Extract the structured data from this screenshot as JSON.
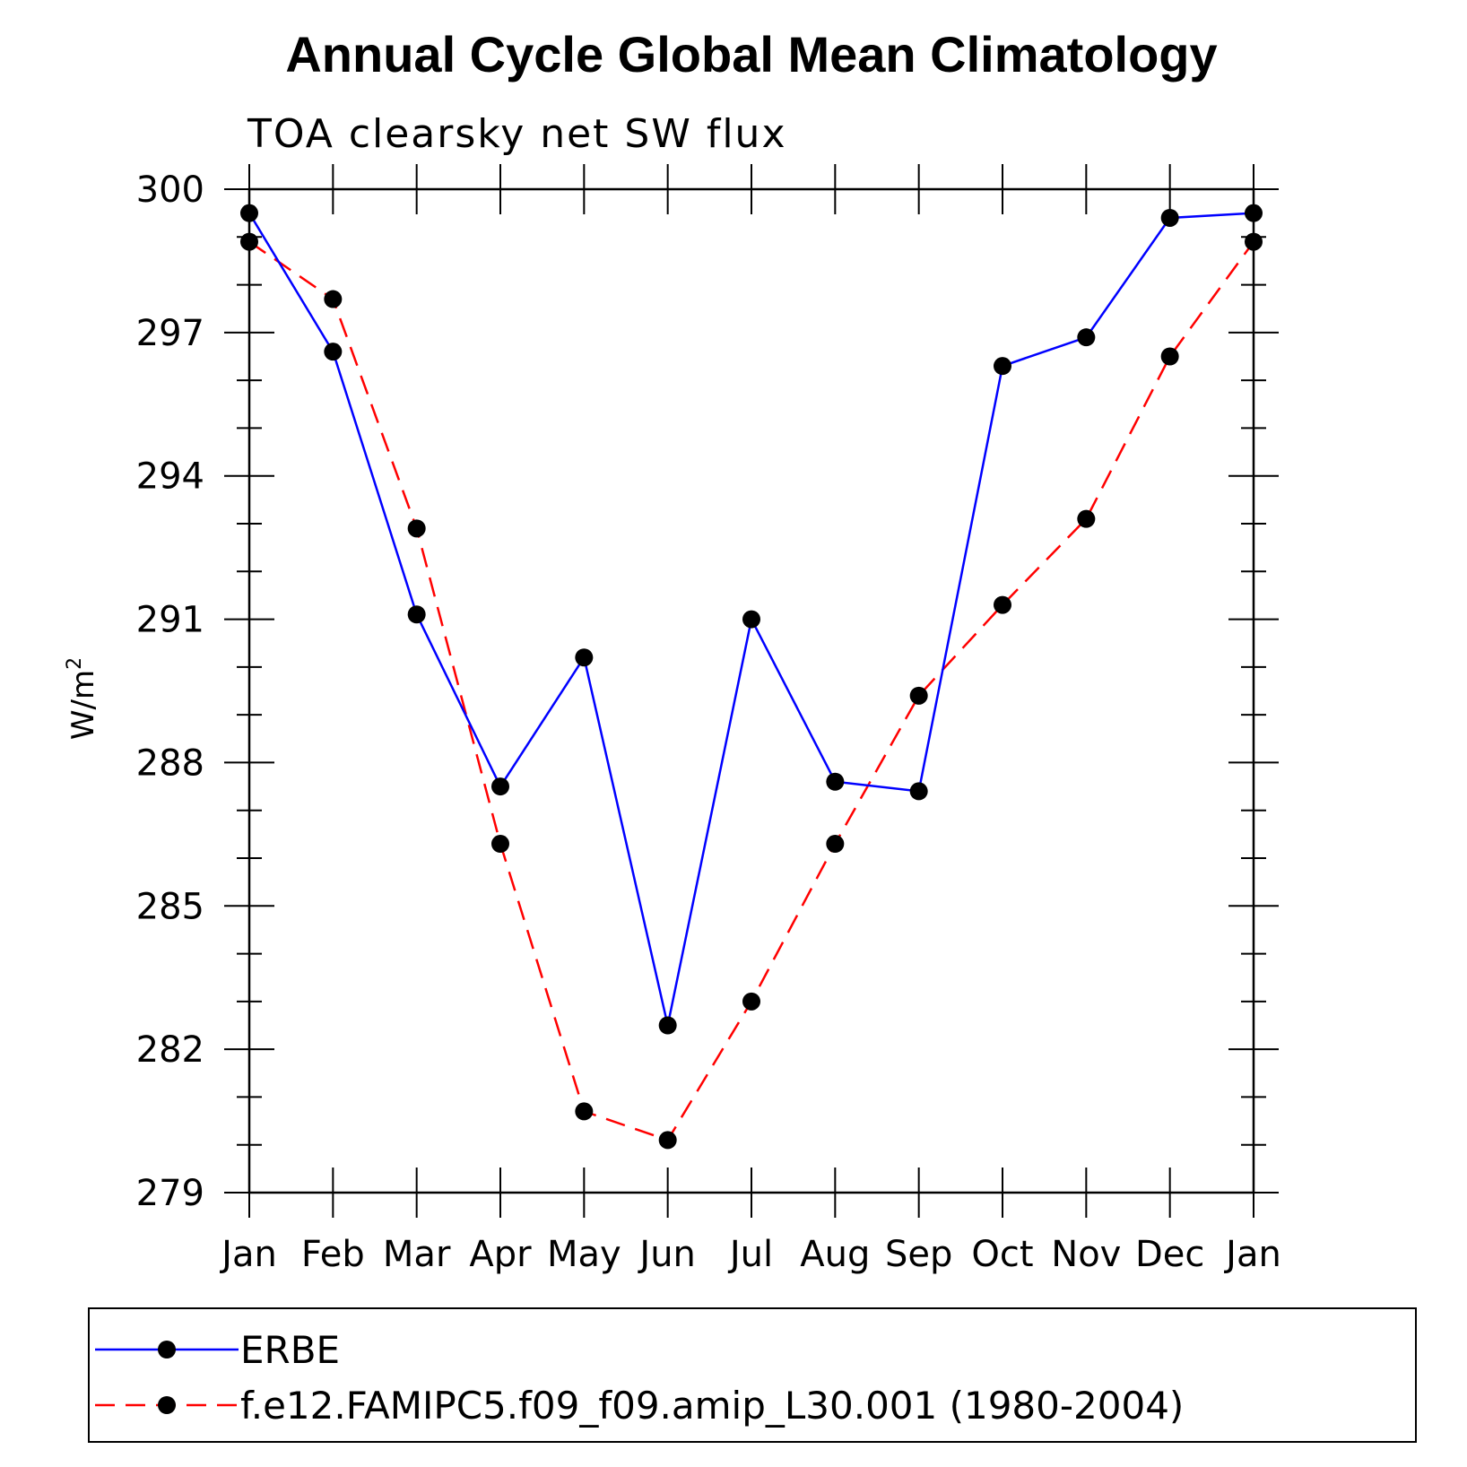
{
  "chart_data": {
    "type": "line",
    "title": "Annual Cycle Global Mean Climatology",
    "subtitle": "TOA clearsky net SW flux",
    "xlabel": "",
    "ylabel": "W/m",
    "ylabel_superscript": "2",
    "categories": [
      "Jan",
      "Feb",
      "Mar",
      "Apr",
      "May",
      "Jun",
      "Jul",
      "Aug",
      "Sep",
      "Oct",
      "Nov",
      "Dec",
      "Jan"
    ],
    "ylim": [
      279,
      300
    ],
    "yticks": [
      279,
      282,
      285,
      288,
      291,
      294,
      297,
      300
    ],
    "yminor_step": 1,
    "legend_position": "bottom",
    "series": [
      {
        "name": "ERBE",
        "color": "#0000ff",
        "dash": "solid",
        "marker": "circle",
        "values": [
          299.5,
          296.6,
          291.1,
          287.5,
          290.2,
          282.5,
          291.0,
          287.6,
          287.4,
          296.3,
          296.9,
          299.4,
          299.5
        ]
      },
      {
        "name": "f.e12.FAMIPC5.f09_f09.amip_L30.001 (1980-2004)",
        "color": "#ff0000",
        "dash": "dashed",
        "marker": "circle",
        "values": [
          298.9,
          297.7,
          292.9,
          286.3,
          280.7,
          280.1,
          283.0,
          286.3,
          289.4,
          291.3,
          293.1,
          296.5,
          298.9
        ]
      }
    ]
  }
}
